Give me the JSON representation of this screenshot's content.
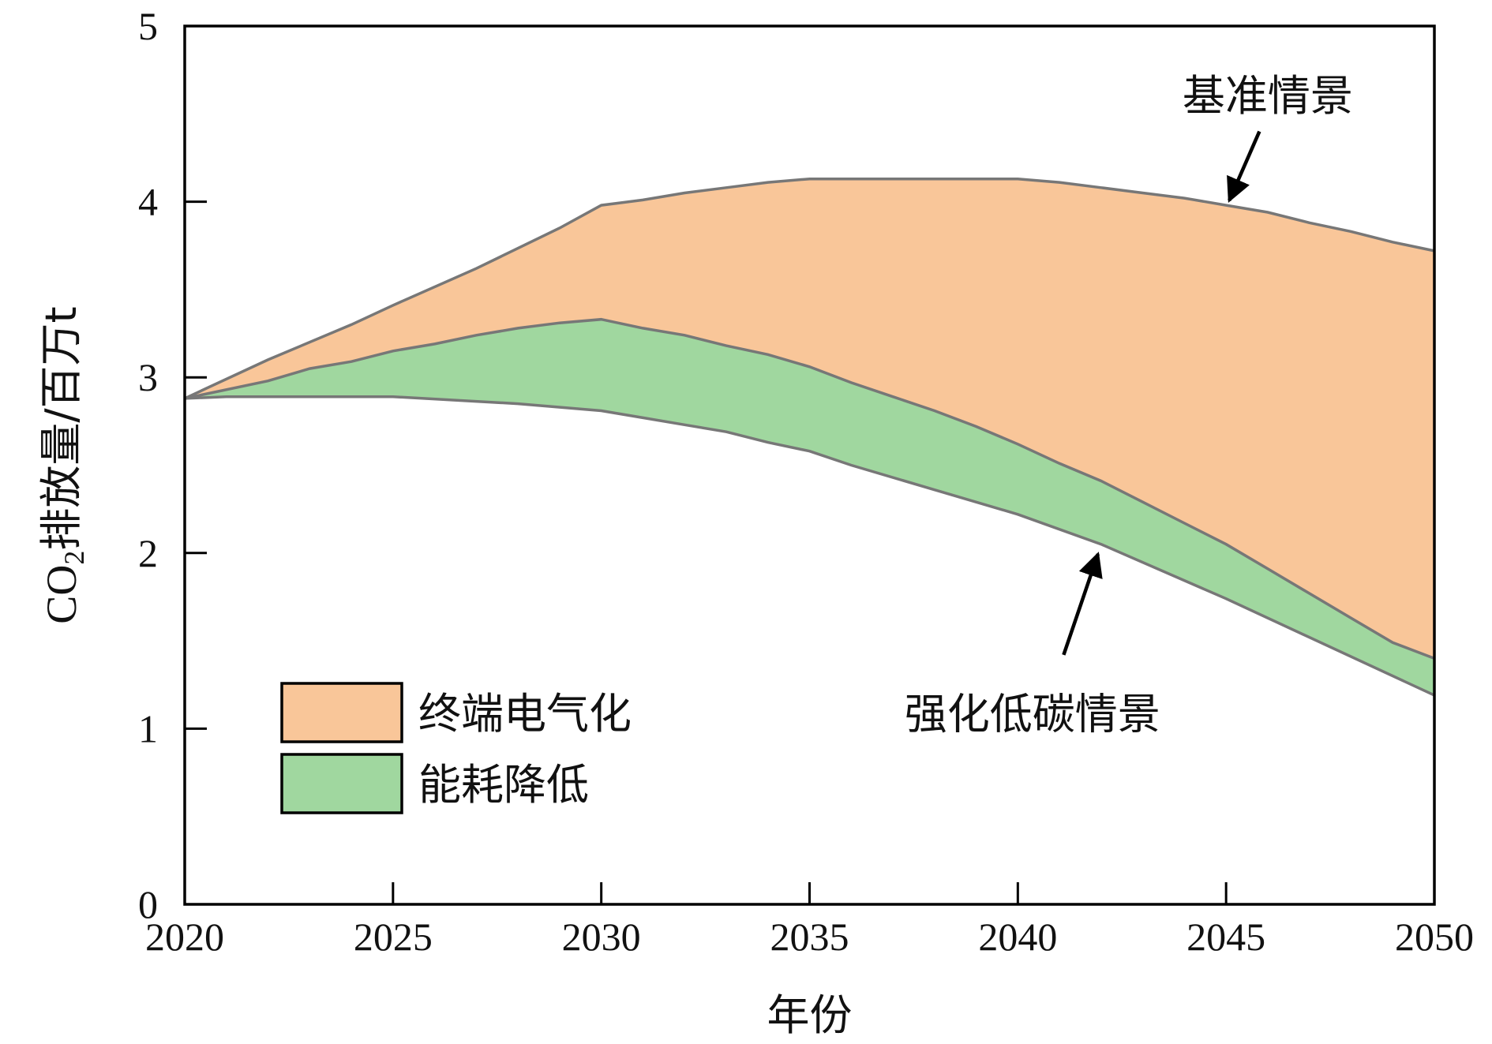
{
  "chart_data": {
    "type": "area",
    "xlabel": "年份",
    "ylabel": {
      "prefix": "CO",
      "subscript": "2",
      "suffix": "排放量/百万t"
    },
    "xlim": [
      2020,
      2050
    ],
    "ylim": [
      0,
      5
    ],
    "xticks": [
      "2020",
      "2025",
      "2030",
      "2035",
      "2040",
      "2045",
      "2050"
    ],
    "yticks": [
      "0",
      "1",
      "2",
      "3",
      "4",
      "5"
    ],
    "grid": false,
    "legend_position": "lower-left",
    "series": [
      {
        "name": "终端电气化",
        "color": "#f9c699",
        "lower": "energy_reduction_top",
        "upper": "baseline"
      },
      {
        "name": "能耗降低",
        "color": "#a0d79f",
        "lower": "low_carbon",
        "upper": "energy_reduction_top"
      }
    ],
    "lines": {
      "baseline": {
        "x": [
          2020,
          2022,
          2024,
          2025,
          2027,
          2029,
          2030,
          2031,
          2032,
          2033,
          2034,
          2035,
          2036,
          2037,
          2038,
          2039,
          2040,
          2041,
          2042,
          2043,
          2044,
          2045,
          2046,
          2047,
          2048,
          2049,
          2050
        ],
        "y": [
          2.88,
          3.1,
          3.3,
          3.41,
          3.62,
          3.85,
          3.98,
          4.01,
          4.05,
          4.08,
          4.11,
          4.13,
          4.13,
          4.13,
          4.13,
          4.13,
          4.13,
          4.11,
          4.08,
          4.05,
          4.02,
          3.98,
          3.94,
          3.88,
          3.83,
          3.77,
          3.72
        ]
      },
      "energy_reduction_top": {
        "x": [
          2020,
          2022,
          2023,
          2024,
          2025,
          2026,
          2027,
          2028,
          2029,
          2030,
          2031,
          2032,
          2033,
          2034,
          2035,
          2036,
          2037,
          2038,
          2039,
          2040,
          2041,
          2042,
          2043,
          2044,
          2045,
          2046,
          2047,
          2048,
          2049,
          2050
        ],
        "y": [
          2.88,
          2.98,
          3.05,
          3.09,
          3.15,
          3.19,
          3.24,
          3.28,
          3.31,
          3.33,
          3.28,
          3.24,
          3.18,
          3.13,
          3.06,
          2.97,
          2.89,
          2.81,
          2.72,
          2.62,
          2.51,
          2.41,
          2.29,
          2.17,
          2.05,
          1.91,
          1.77,
          1.63,
          1.49,
          1.4
        ]
      },
      "low_carbon": {
        "x": [
          2020,
          2021,
          2025,
          2028,
          2030,
          2031,
          2032,
          2033,
          2034,
          2035,
          2036,
          2038,
          2040,
          2042,
          2045,
          2050
        ],
        "y": [
          2.88,
          2.89,
          2.89,
          2.85,
          2.81,
          2.77,
          2.73,
          2.69,
          2.63,
          2.58,
          2.5,
          2.36,
          2.22,
          2.05,
          1.74,
          1.19
        ]
      }
    },
    "annotations": [
      {
        "text": "基准情景",
        "target_x": 2045,
        "target_y": 3.98,
        "text_x": 2046,
        "text_y": 4.6
      },
      {
        "text": "强化低碳情景",
        "target_x": 2042,
        "target_y": 2.03,
        "text_x": 2040.5,
        "text_y": 1.08
      }
    ]
  }
}
